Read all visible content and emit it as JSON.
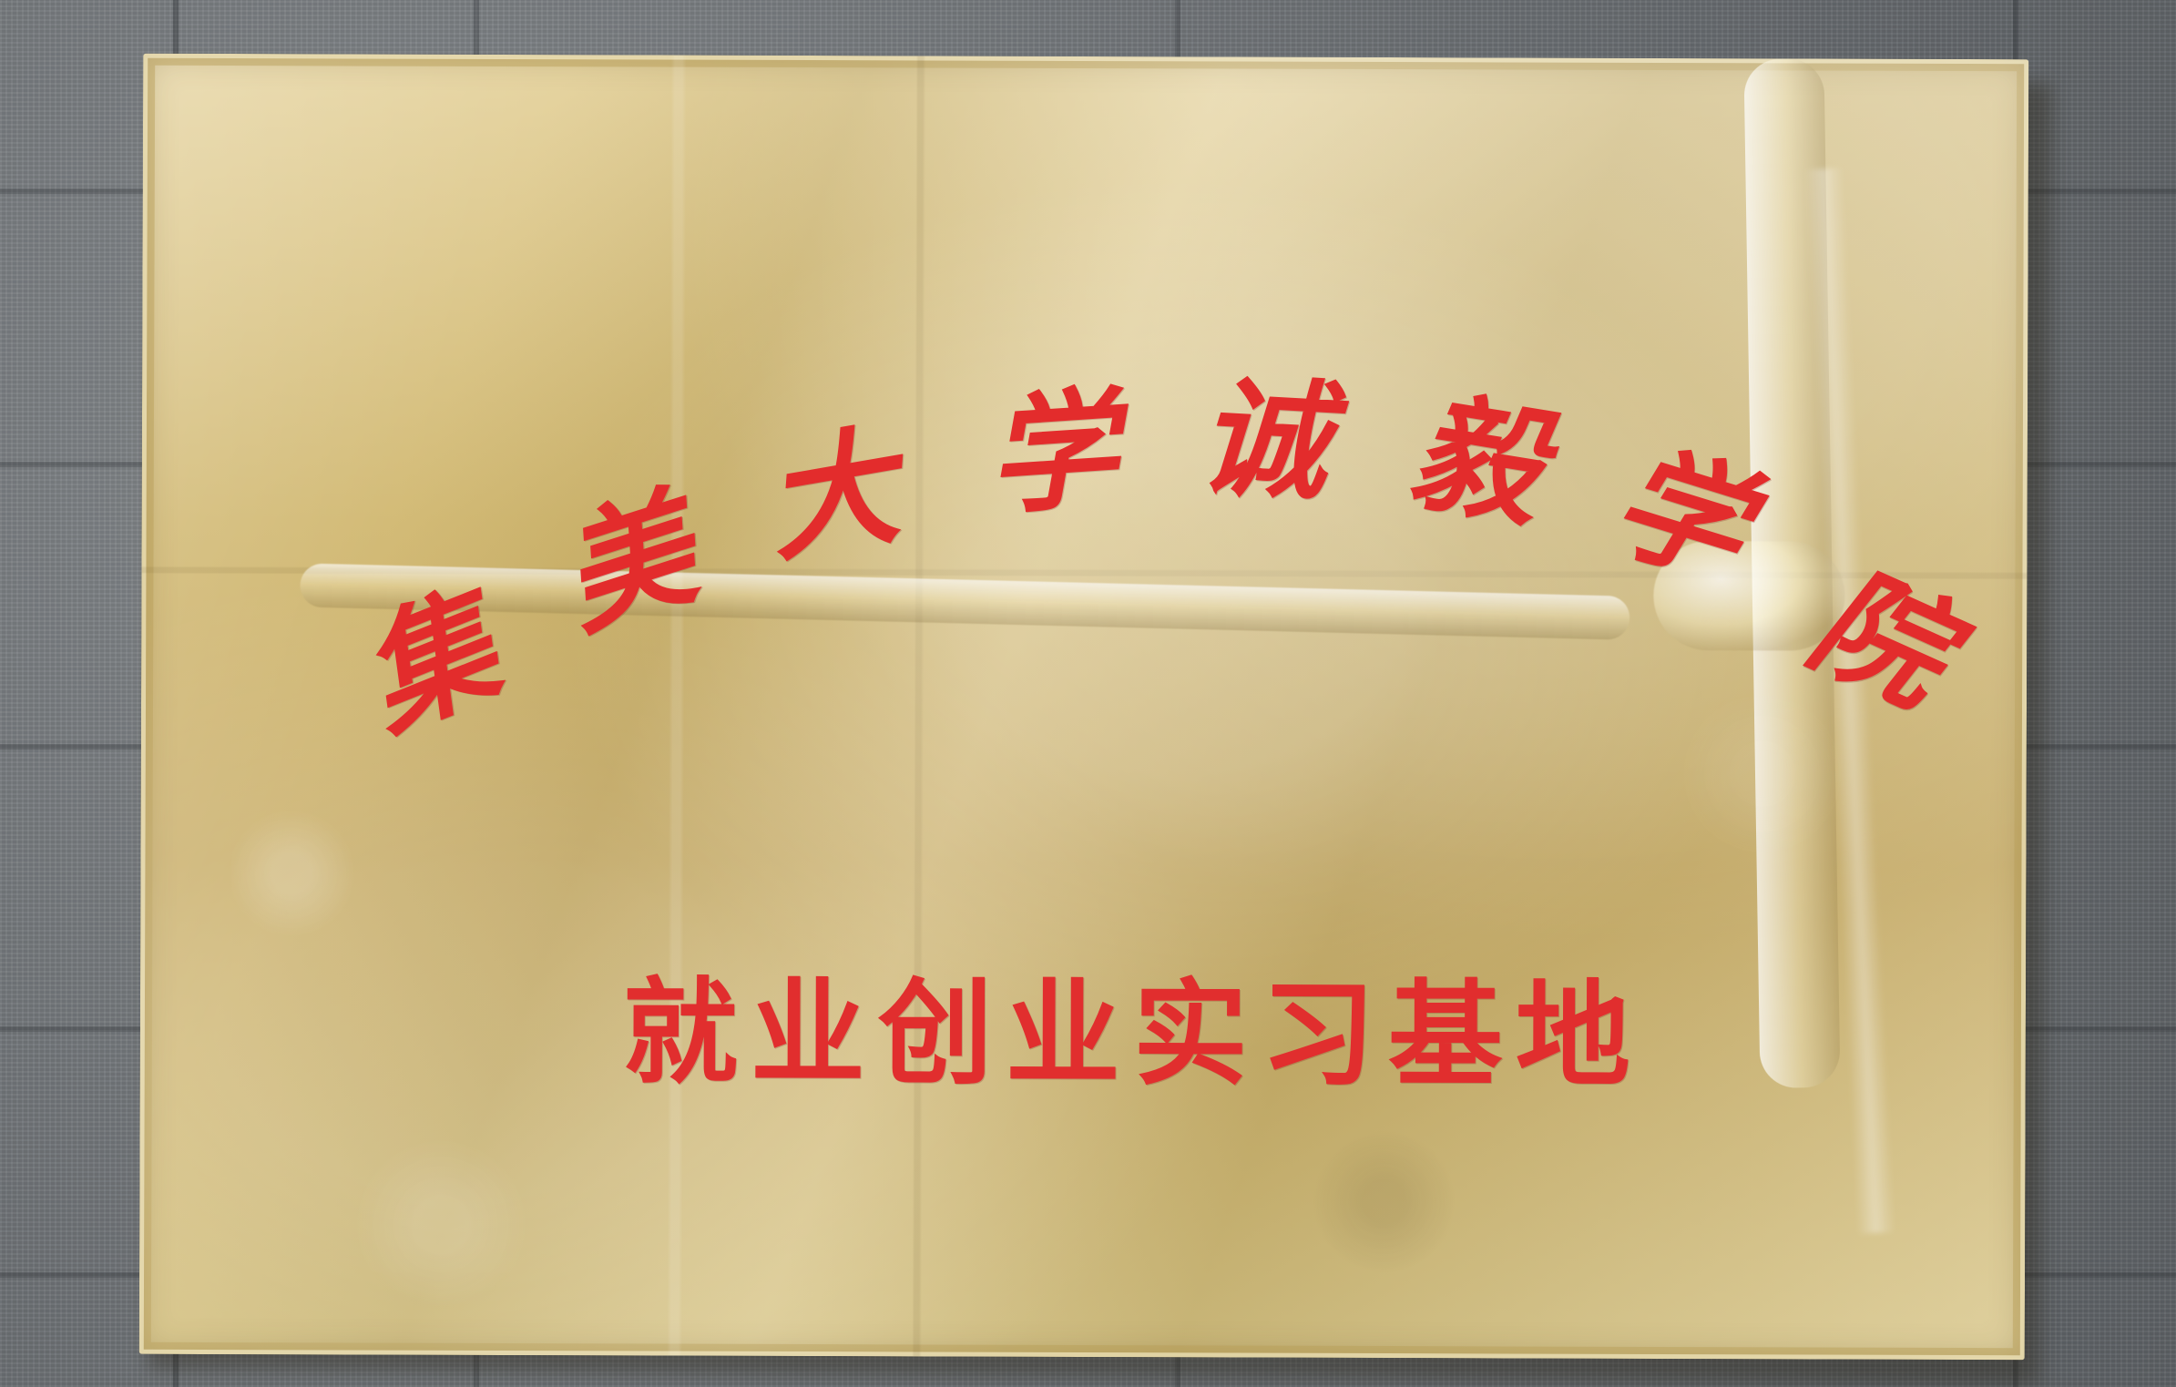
{
  "plaque": {
    "arched_characters": [
      "集",
      "美",
      "大",
      "学",
      "诚",
      "毅",
      "学",
      "院"
    ],
    "subtitle": "就业创业实习基地",
    "text_color": "#e32c2c",
    "plaque_color": "#d6c27d"
  }
}
